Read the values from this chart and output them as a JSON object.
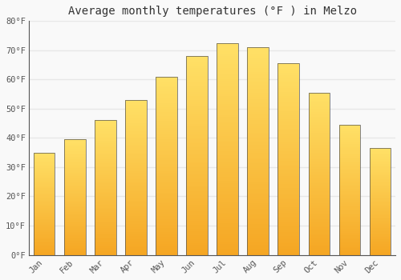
{
  "title": "Average monthly temperatures (°F ) in Melzo",
  "months": [
    "Jan",
    "Feb",
    "Mar",
    "Apr",
    "May",
    "Jun",
    "Jul",
    "Aug",
    "Sep",
    "Oct",
    "Nov",
    "Dec"
  ],
  "values": [
    35,
    39.5,
    46,
    53,
    61,
    68,
    72.5,
    71,
    65.5,
    55.5,
    44.5,
    36.5
  ],
  "bar_color_bottom": "#F5A623",
  "bar_color_top": "#FFE066",
  "bar_edge_color": "#555555",
  "ylim": [
    0,
    80
  ],
  "yticks": [
    0,
    10,
    20,
    30,
    40,
    50,
    60,
    70,
    80
  ],
  "ytick_labels": [
    "0°F",
    "10°F",
    "20°F",
    "30°F",
    "40°F",
    "50°F",
    "60°F",
    "70°F",
    "80°F"
  ],
  "background_color": "#f9f9f9",
  "plot_bg_color": "#f9f9f9",
  "grid_color": "#e8e8e8",
  "title_fontsize": 10,
  "tick_fontsize": 7.5,
  "bar_width": 0.7,
  "n_gradient_segments": 100
}
